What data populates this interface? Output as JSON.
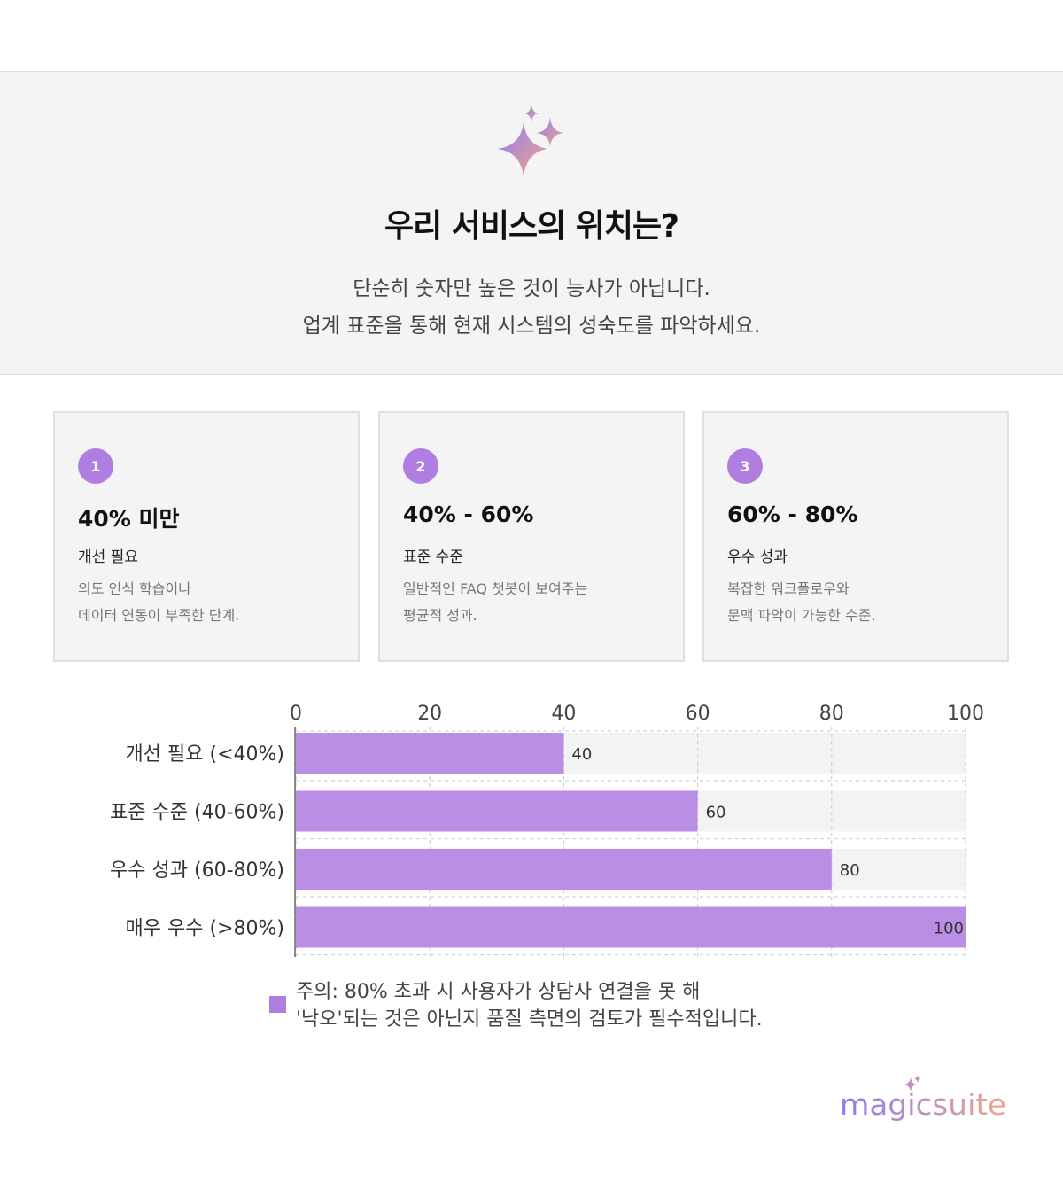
{
  "header": {
    "title": "우리 서비스의 위치는?",
    "subtitle_line1": "단순히 숫자만 높은 것이 능사가 아닙니다.",
    "subtitle_line2": "업계 표준을 통해 현재 시스템의 성숙도를 파악하세요.",
    "icon": "sparkle-icon"
  },
  "cards": [
    {
      "num": "1",
      "range": "40% 미만",
      "level": "개선 필요",
      "desc1": "의도 인식 학습이나",
      "desc2": "데이터 연동이 부족한 단계."
    },
    {
      "num": "2",
      "range": "40% - 60%",
      "level": "표준 수준",
      "desc1": "일반적인 FAQ 챗봇이 보여주는",
      "desc2": "평균적 성과."
    },
    {
      "num": "3",
      "range": "60% - 80%",
      "level": "우수 성과",
      "desc1": "복잡한 워크플로우와",
      "desc2": "문맥 파악이 가능한 수준."
    }
  ],
  "chart_data": {
    "type": "bar",
    "orientation": "horizontal",
    "categories": [
      "개선 필요 (<40%)",
      "표준 수준 (40-60%)",
      "우수 성과 (60-80%)",
      "매우 우수 (>80%)"
    ],
    "values": [
      40,
      60,
      80,
      100
    ],
    "value_labels": [
      "40",
      "60",
      "80",
      "100"
    ],
    "xlim": [
      0,
      100
    ],
    "xticks": [
      "0",
      "20",
      "40",
      "60",
      "80",
      "100"
    ],
    "x_axis_position": "top",
    "grid": true,
    "bar_color": "#bb8ee6",
    "track_color": "#f3f3f3"
  },
  "legend": {
    "line1": "주의: 80% 초과 시 사용자가 상담사 연결을 못 해",
    "line2": "'낙오'되는 것은 아닌지 품질 측면의 검토가 필수적입니다."
  },
  "brand": {
    "name": "magicsuite",
    "gradient_start": "#8a7cf0",
    "gradient_end": "#f0a88c"
  },
  "colors": {
    "accent": "#b07ee0",
    "panel": "#f4f4f4"
  }
}
